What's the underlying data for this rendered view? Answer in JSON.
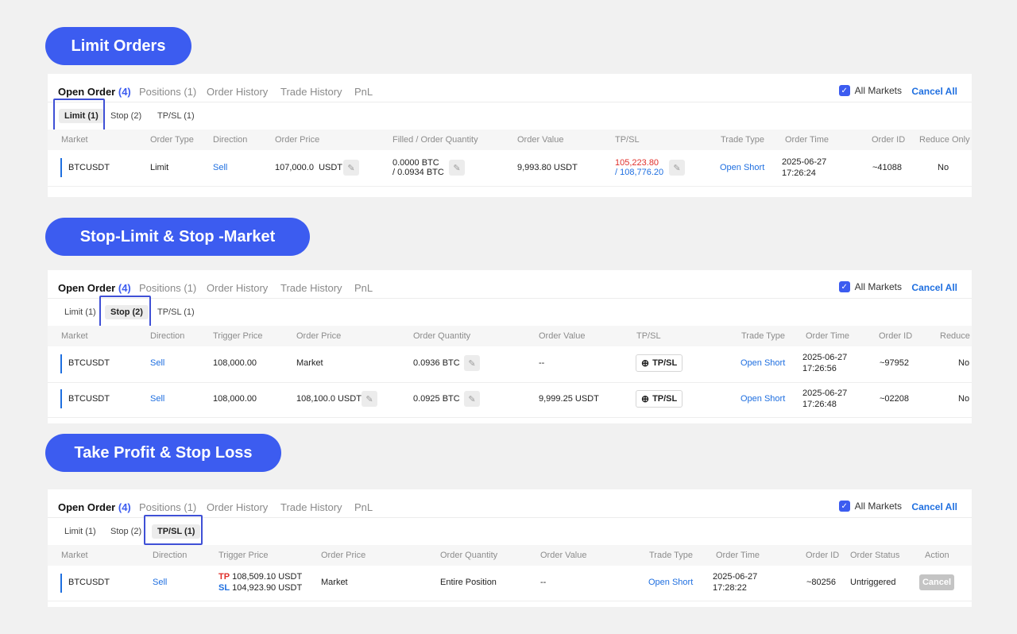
{
  "sections": {
    "limit": {
      "title": "Limit Orders"
    },
    "stop": {
      "title": "Stop-Limit & Stop -Market"
    },
    "tpsl": {
      "title": "Take Profit & Stop Loss"
    }
  },
  "tabs": {
    "open_order": "Open Order",
    "open_order_count": "(4)",
    "positions": "Positions (1)",
    "order_history": "Order History",
    "trade_history": "Trade History",
    "pnl": "PnL"
  },
  "all_markets": "All Markets",
  "cancel_all": "Cancel All",
  "subtabs": {
    "limit": "Limit (1)",
    "stop": "Stop (2)",
    "tpsl": "TP/SL (1)"
  },
  "limit_table": {
    "headers": [
      "Market",
      "Order Type",
      "Direction",
      "Order Price",
      "Filled / Order Quantity",
      "Order Value",
      "TP/SL",
      "Trade Type",
      "Order Time",
      "Order ID",
      "Reduce Only"
    ],
    "row": {
      "market": "BTCUSDT",
      "order_type": "Limit",
      "direction": "Sell",
      "order_price": "107,000.0",
      "order_price_unit": "USDT",
      "filled": "0.0000",
      "filled_unit": "BTC",
      "qty": "/ 0.0934",
      "qty_unit": "BTC",
      "order_value": "9,993.80",
      "order_value_unit": "USDT",
      "tp": "105,223.80",
      "sl": "/ 108,776.20",
      "trade_type": "Open Short",
      "date": "2025-06-27",
      "time": "17:26:24",
      "order_id": "~41088",
      "reduce_only": "No"
    }
  },
  "stop_table": {
    "headers": [
      "Market",
      "Direction",
      "Trigger Price",
      "Order Price",
      "Order Quantity",
      "Order Value",
      "TP/SL",
      "Trade Type",
      "Order Time",
      "Order ID",
      "Reduce"
    ],
    "tpsl_button": "TP/SL",
    "rows": [
      {
        "market": "BTCUSDT",
        "direction": "Sell",
        "trigger": "108,000.00",
        "order_price": "Market",
        "qty": "0.0936 BTC",
        "order_value": "--",
        "trade_type": "Open Short",
        "date": "2025-06-27",
        "time": "17:26:56",
        "order_id": "~97952",
        "reduce": "No"
      },
      {
        "market": "BTCUSDT",
        "direction": "Sell",
        "trigger": "108,000.00",
        "order_price": "108,100.0 USDT",
        "qty": "0.0925 BTC",
        "order_value": "9,999.25 USDT",
        "trade_type": "Open Short",
        "date": "2025-06-27",
        "time": "17:26:48",
        "order_id": "~02208",
        "reduce": "No"
      }
    ]
  },
  "tpsl_table": {
    "headers": [
      "Market",
      "Direction",
      "Trigger Price",
      "Order Price",
      "Order Quantity",
      "Order Value",
      "Trade Type",
      "Order Time",
      "Order ID",
      "Order Status",
      "Action"
    ],
    "row": {
      "market": "BTCUSDT",
      "direction": "Sell",
      "tp_label": "TP",
      "tp_value": "108,509.10 USDT",
      "sl_label": "SL",
      "sl_value": "104,923.90 USDT",
      "order_price": "Market",
      "qty": "Entire Position",
      "order_value": "--",
      "trade_type": "Open Short",
      "date": "2025-06-27",
      "time": "17:28:22",
      "order_id": "~80256",
      "status": "Untriggered",
      "action": "Cancel"
    }
  },
  "colors": {
    "accent": "#3c5cf0",
    "link": "#1f6fe0",
    "tp_red": "#e0302b",
    "highlight_box": "#3f50d6"
  },
  "icons": {
    "edit": "pencil-icon",
    "add": "plus-circle-icon",
    "check": "checkbox-checked-icon"
  }
}
